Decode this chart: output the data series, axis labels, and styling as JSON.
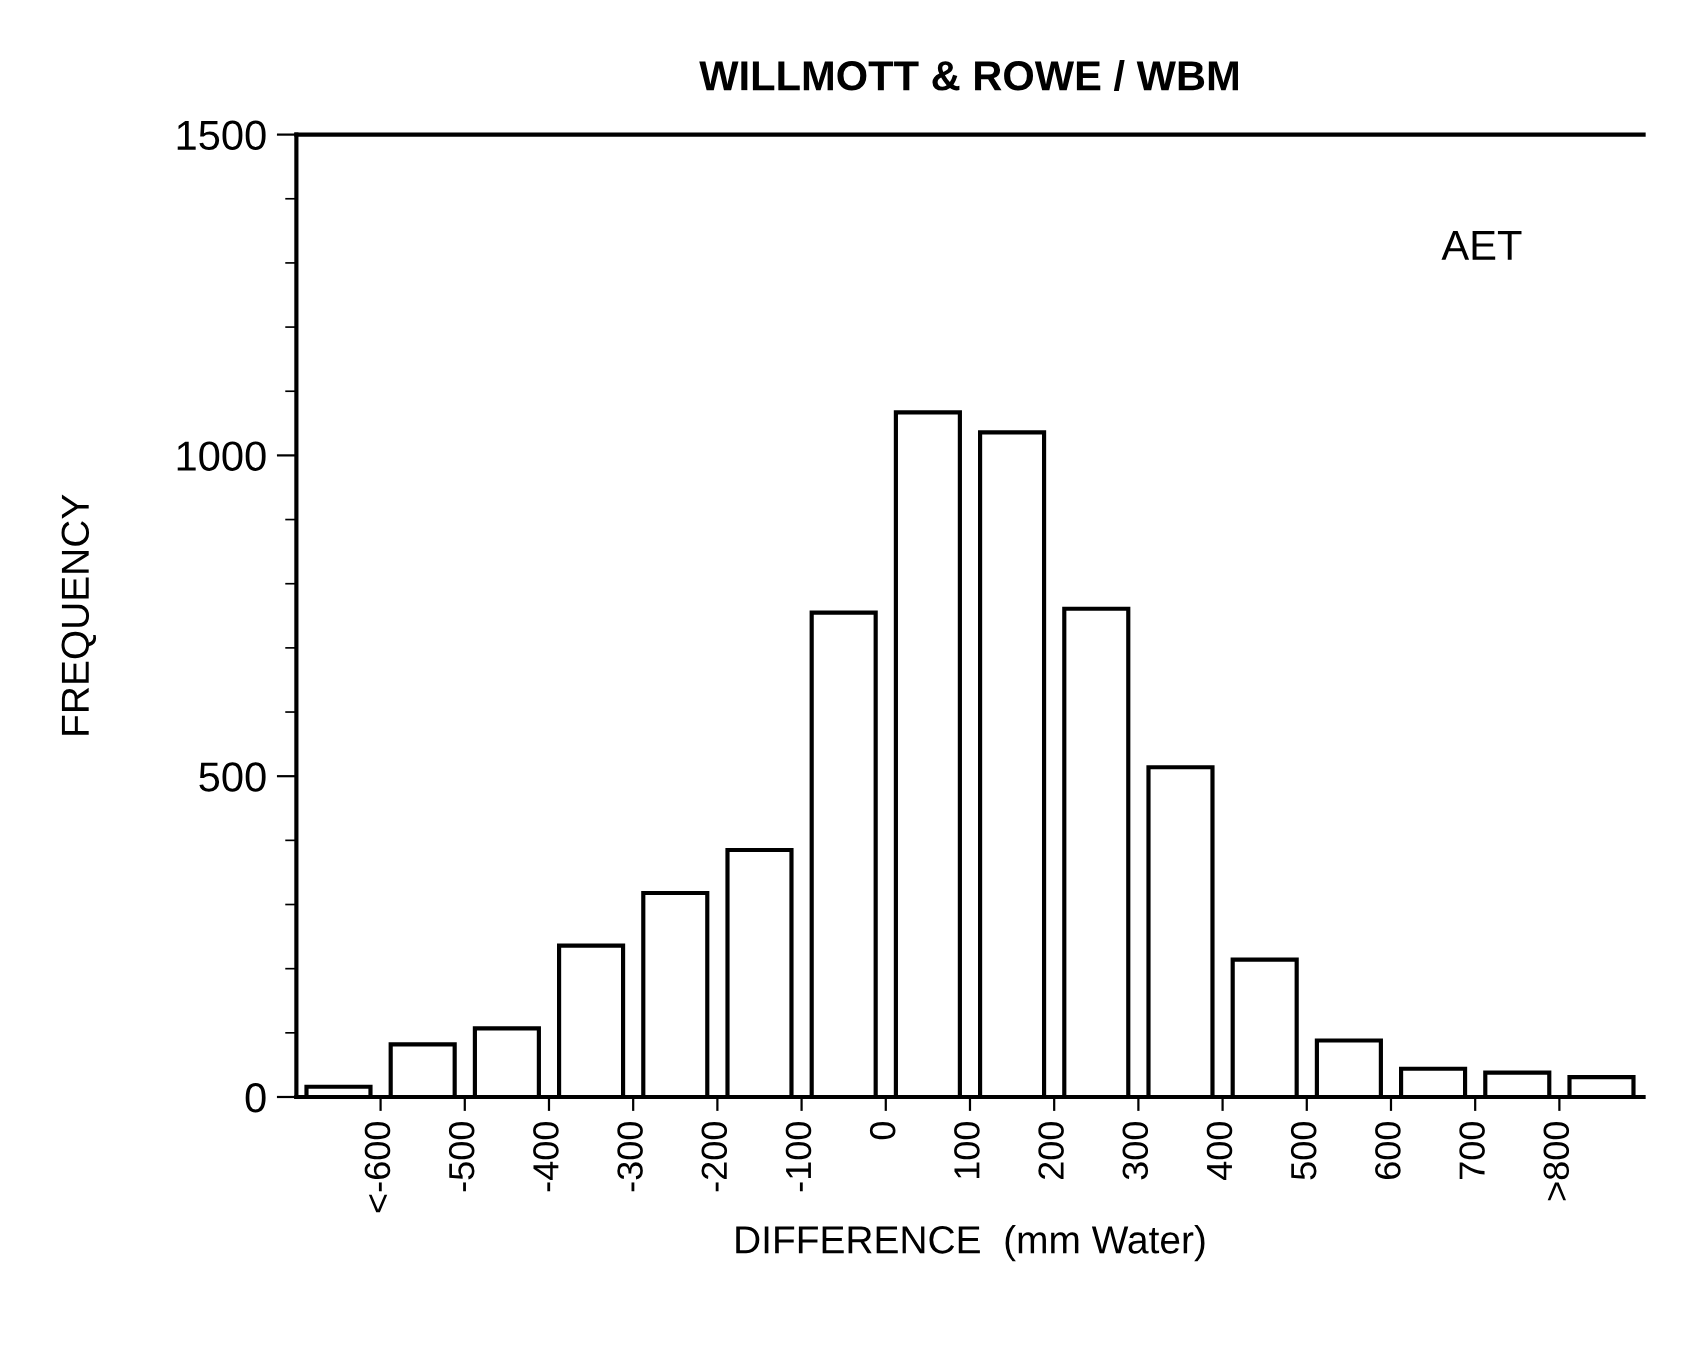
{
  "chart_data": {
    "type": "histogram",
    "title": "WILLMOTT & ROWE / WBM",
    "xlabel": "DIFFERENCE  (mm Water)",
    "ylabel": "FREQUENCY",
    "annotations": [
      "AET"
    ],
    "bins": [
      -700,
      -600,
      -500,
      -400,
      -300,
      -200,
      -100,
      0,
      100,
      200,
      300,
      400,
      500,
      600,
      700,
      800,
      900
    ],
    "values": [
      16,
      82,
      107,
      236,
      318,
      385,
      755,
      1067,
      1036,
      761,
      514,
      214,
      88,
      44,
      38,
      31
    ],
    "color": "#ffffff",
    "xlim": [
      -700,
      900
    ],
    "xticks": [
      {
        "value": -600,
        "label": "<-600"
      },
      -500,
      -400,
      -300,
      -200,
      -100,
      0,
      100,
      200,
      300,
      400,
      500,
      600,
      700,
      {
        "value": 800,
        "label": ">800"
      }
    ],
    "ylim": [
      0,
      1500
    ],
    "yticks": [
      0,
      500,
      1000,
      1500
    ],
    "grid": false,
    "legend": false
  }
}
